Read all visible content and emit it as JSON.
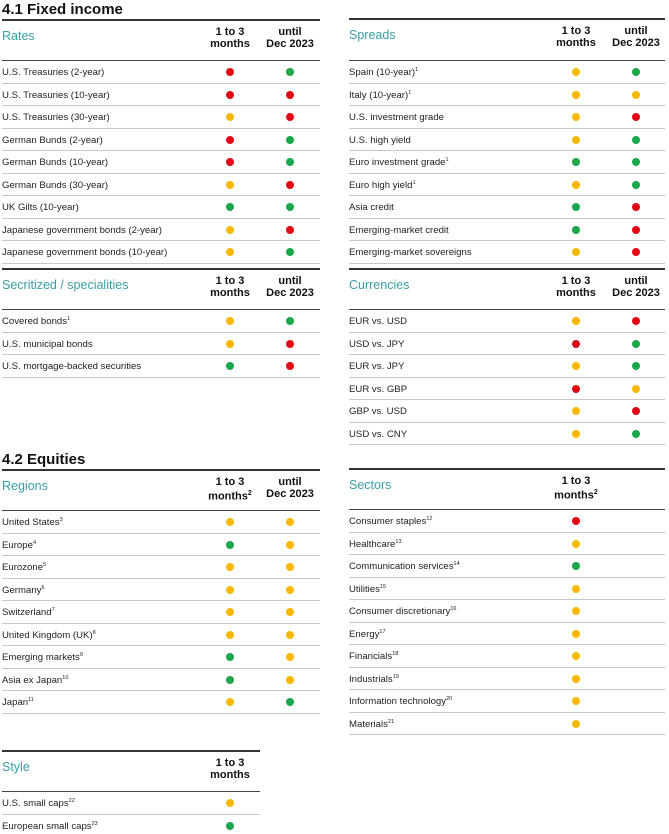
{
  "colors": {
    "red": "#e30613",
    "green": "#1aa64a",
    "yellow": "#f7b800",
    "teal": "#3a9ea5"
  },
  "titles": {
    "fixed_income": "4.1 Fixed income",
    "equities": "4.2 Equities"
  },
  "tables": {
    "rates": {
      "name": "Rates",
      "col1": "1 to 3",
      "col1b": "months",
      "col2": "until",
      "col2b": "Dec 2023",
      "rows": [
        {
          "label": "U.S. Treasuries (2-year)",
          "sup": "",
          "c1": "red",
          "c2": "green"
        },
        {
          "label": "U.S. Treasuries (10-year)",
          "sup": "",
          "c1": "red",
          "c2": "red"
        },
        {
          "label": "U.S. Treasuries (30-year)",
          "sup": "",
          "c1": "yellow",
          "c2": "red"
        },
        {
          "label": "German Bunds (2-year)",
          "sup": "",
          "c1": "red",
          "c2": "green"
        },
        {
          "label": "German Bunds (10-year)",
          "sup": "",
          "c1": "red",
          "c2": "green"
        },
        {
          "label": "German Bunds (30-year)",
          "sup": "",
          "c1": "yellow",
          "c2": "red"
        },
        {
          "label": "UK Gilts (10-year)",
          "sup": "",
          "c1": "green",
          "c2": "green"
        },
        {
          "label": "Japanese government bonds (2-year)",
          "sup": "",
          "c1": "yellow",
          "c2": "red"
        },
        {
          "label": "Japanese government bonds (10-year)",
          "sup": "",
          "c1": "yellow",
          "c2": "green"
        }
      ]
    },
    "spreads": {
      "name": "Spreads",
      "col1": "1 to 3",
      "col1b": "months",
      "col2": "until",
      "col2b": "Dec 2023",
      "rows": [
        {
          "label": "Spain (10-year)",
          "sup": "1",
          "c1": "yellow",
          "c2": "green"
        },
        {
          "label": "Italy (10-year)",
          "sup": "1",
          "c1": "yellow",
          "c2": "yellow"
        },
        {
          "label": "U.S. investment grade",
          "sup": "",
          "c1": "yellow",
          "c2": "red"
        },
        {
          "label": "U.S. high yield",
          "sup": "",
          "c1": "yellow",
          "c2": "green"
        },
        {
          "label": "Euro investment grade",
          "sup": "1",
          "c1": "green",
          "c2": "green"
        },
        {
          "label": "Euro high yield",
          "sup": "1",
          "c1": "yellow",
          "c2": "green"
        },
        {
          "label": "Asia credit",
          "sup": "",
          "c1": "green",
          "c2": "red"
        },
        {
          "label": "Emerging-market credit",
          "sup": "",
          "c1": "green",
          "c2": "red"
        },
        {
          "label": "Emerging-market sovereigns",
          "sup": "",
          "c1": "yellow",
          "c2": "red"
        }
      ]
    },
    "securitized": {
      "name": "Secritized / specialities",
      "col1": "1 to 3",
      "col1b": "months",
      "col2": "until",
      "col2b": "Dec 2023",
      "rows": [
        {
          "label": "Covered bonds",
          "sup": "1",
          "c1": "yellow",
          "c2": "green"
        },
        {
          "label": "U.S. municipal bonds",
          "sup": "",
          "c1": "yellow",
          "c2": "red"
        },
        {
          "label": "U.S. mortgage-backed securities",
          "sup": "",
          "c1": "green",
          "c2": "red"
        }
      ]
    },
    "currencies": {
      "name": "Currencies",
      "col1": "1 to 3",
      "col1b": "months",
      "col2": "until",
      "col2b": "Dec 2023",
      "rows": [
        {
          "label": "EUR vs. USD",
          "sup": "",
          "c1": "yellow",
          "c2": "red"
        },
        {
          "label": "USD vs. JPY",
          "sup": "",
          "c1": "red",
          "c2": "green"
        },
        {
          "label": "EUR vs. JPY",
          "sup": "",
          "c1": "yellow",
          "c2": "green"
        },
        {
          "label": "EUR vs. GBP",
          "sup": "",
          "c1": "red",
          "c2": "yellow"
        },
        {
          "label": "GBP vs. USD",
          "sup": "",
          "c1": "yellow",
          "c2": "red"
        },
        {
          "label": "USD vs. CNY",
          "sup": "",
          "c1": "yellow",
          "c2": "green"
        }
      ]
    },
    "regions": {
      "name": "Regions",
      "col1": "1 to 3",
      "col1b": "months",
      "col1sup": "2",
      "col2": "until",
      "col2b": "Dec 2023",
      "rows": [
        {
          "label": "United States",
          "sup": "3",
          "c1": "yellow",
          "c2": "yellow"
        },
        {
          "label": "Europe",
          "sup": "4",
          "c1": "green",
          "c2": "yellow"
        },
        {
          "label": "Eurozone",
          "sup": "5",
          "c1": "yellow",
          "c2": "yellow"
        },
        {
          "label": "Germany",
          "sup": "6",
          "c1": "yellow",
          "c2": "yellow"
        },
        {
          "label": "Switzerland",
          "sup": "7",
          "c1": "yellow",
          "c2": "yellow"
        },
        {
          "label": "United Kingdom (UK)",
          "sup": "8",
          "c1": "yellow",
          "c2": "yellow"
        },
        {
          "label": "Emerging markets",
          "sup": "9",
          "c1": "green",
          "c2": "yellow"
        },
        {
          "label": "Asia ex Japan",
          "sup": "10",
          "c1": "green",
          "c2": "yellow"
        },
        {
          "label": "Japan",
          "sup": "11",
          "c1": "yellow",
          "c2": "green"
        }
      ]
    },
    "sectors": {
      "name": "Sectors",
      "col1": "1 to 3",
      "col1b": "months",
      "col1sup": "2",
      "rows": [
        {
          "label": "Consumer staples",
          "sup": "12",
          "c1": "red"
        },
        {
          "label": "Healthcare",
          "sup": "13",
          "c1": "yellow"
        },
        {
          "label": "Communication services",
          "sup": "14",
          "c1": "green"
        },
        {
          "label": "Utilities",
          "sup": "15",
          "c1": "yellow"
        },
        {
          "label": "Consumer discretionary",
          "sup": "16",
          "c1": "yellow"
        },
        {
          "label": "Energy",
          "sup": "17",
          "c1": "yellow"
        },
        {
          "label": "Financials",
          "sup": "18",
          "c1": "yellow"
        },
        {
          "label": "Industrials",
          "sup": "19",
          "c1": "yellow"
        },
        {
          "label": "Information technology",
          "sup": "20",
          "c1": "yellow"
        },
        {
          "label": "Materials",
          "sup": "21",
          "c1": "yellow"
        }
      ]
    },
    "style": {
      "name": "Style",
      "col1": "1 to 3",
      "col1b": "months",
      "rows": [
        {
          "label": "U.S. small caps",
          "sup": "22",
          "c1": "yellow"
        },
        {
          "label": "European small caps",
          "sup": "23",
          "c1": "green"
        }
      ]
    }
  }
}
